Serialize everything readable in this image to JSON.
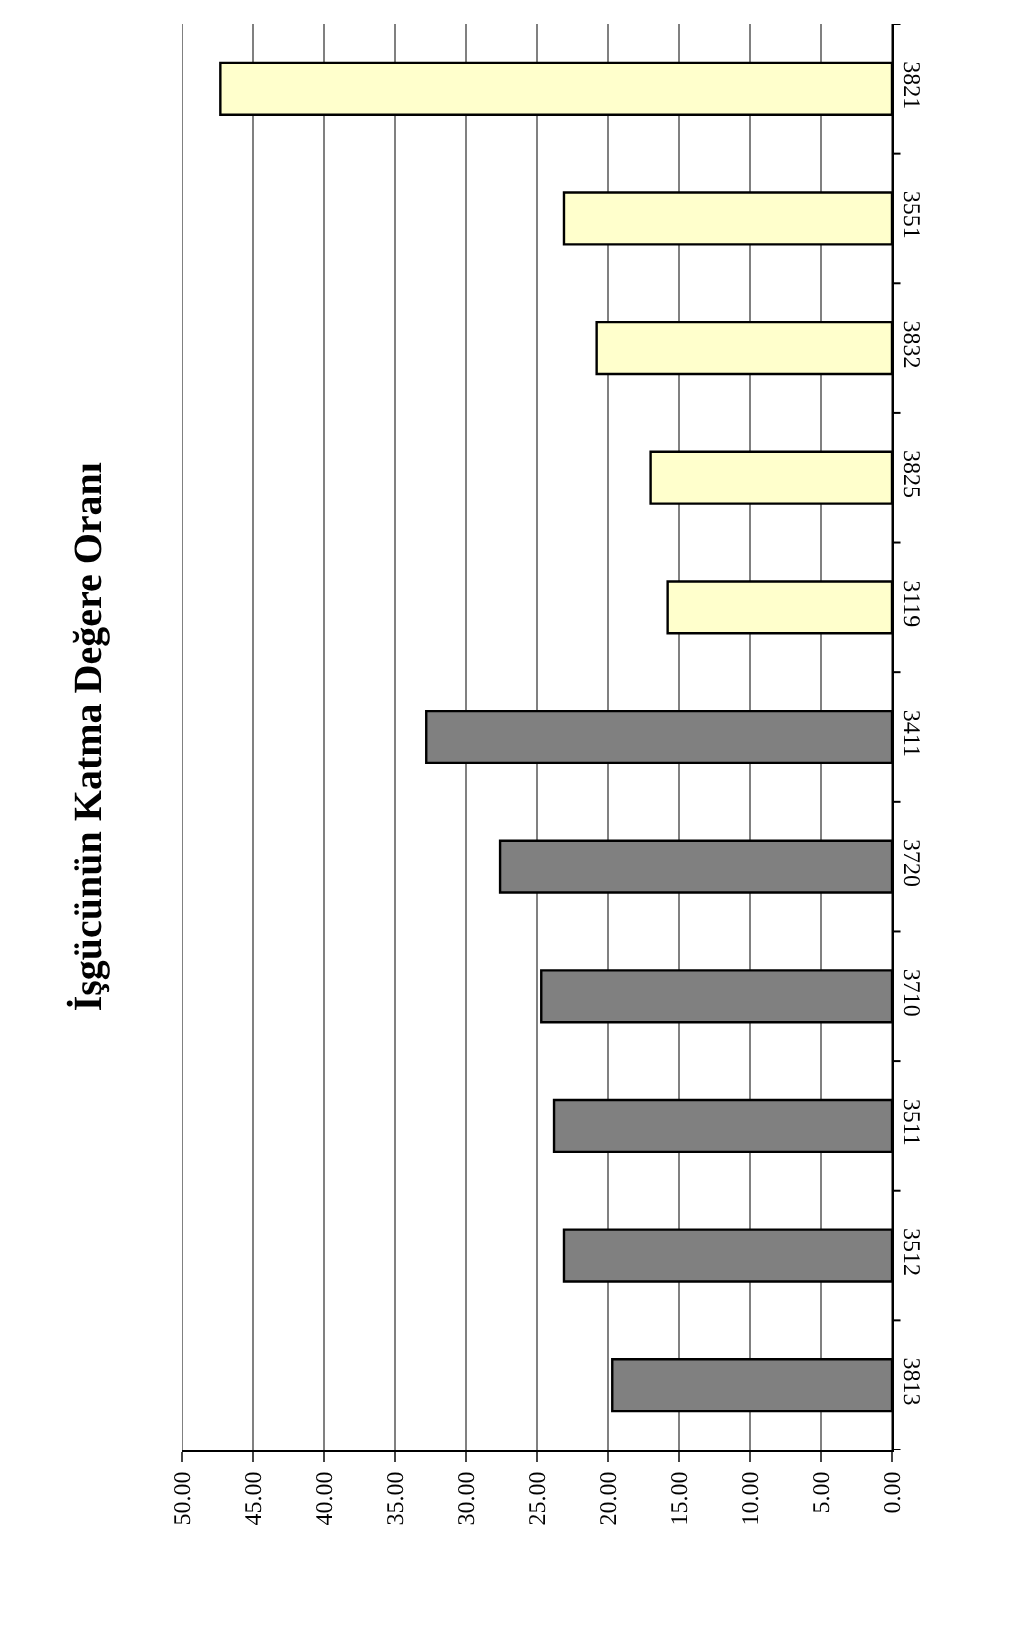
{
  "chart_data": {
    "type": "bar",
    "orientation": "horizontal",
    "title": "İşgücünün Katma Değere Oranı",
    "categories": [
      "3821",
      "3551",
      "3832",
      "3825",
      "3119",
      "3411",
      "3720",
      "3710",
      "3511",
      "3512",
      "3813"
    ],
    "values": [
      47.3,
      23.1,
      20.8,
      17.0,
      15.8,
      32.8,
      27.6,
      24.7,
      23.8,
      23.1,
      19.7
    ],
    "colors": [
      "#ffffcc",
      "#ffffcc",
      "#ffffcc",
      "#ffffcc",
      "#ffffcc",
      "#808080",
      "#808080",
      "#808080",
      "#808080",
      "#808080",
      "#808080"
    ],
    "xlim": [
      50,
      0
    ],
    "xticks": [
      {
        "value": 50,
        "label": "50.00"
      },
      {
        "value": 45,
        "label": "45.00"
      },
      {
        "value": 40,
        "label": "40.00"
      },
      {
        "value": 35,
        "label": "35.00"
      },
      {
        "value": 30,
        "label": "30.00"
      },
      {
        "value": 25,
        "label": "25.00"
      },
      {
        "value": 20,
        "label": "20.00"
      },
      {
        "value": 15,
        "label": "15.00"
      },
      {
        "value": 10,
        "label": "10.00"
      },
      {
        "value": 5,
        "label": "5.00"
      },
      {
        "value": 0,
        "label": "0.00"
      }
    ],
    "grid": "x"
  }
}
